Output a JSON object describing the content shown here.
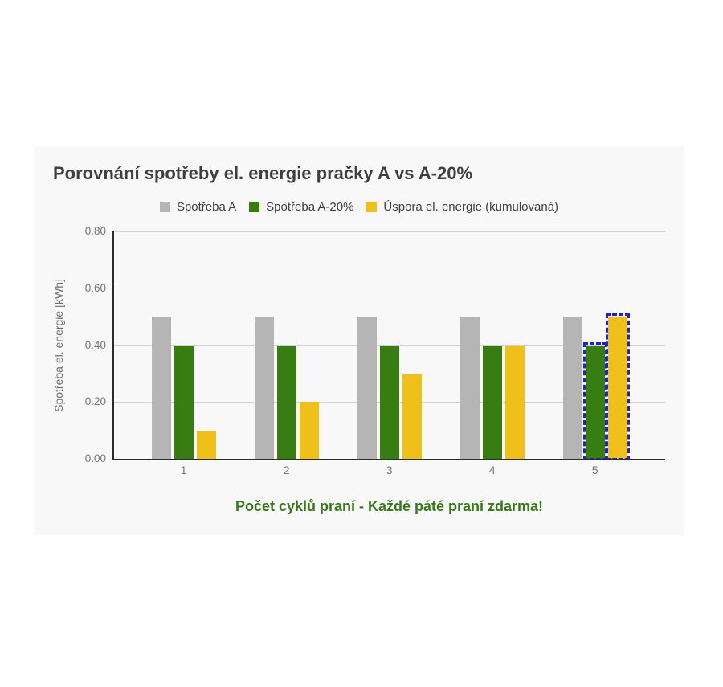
{
  "chart_data": {
    "type": "bar",
    "title": "Porovnání spotřeby el. energie pračky A vs A-20%",
    "xlabel": "Počet cyklů praní - Každé páté praní zdarma!",
    "ylabel": "Spotřeba el. energie [kWh]",
    "categories": [
      "1",
      "2",
      "3",
      "4",
      "5"
    ],
    "series": [
      {
        "name": "Spotřeba A",
        "color": "#b5b5b5",
        "values": [
          0.5,
          0.5,
          0.5,
          0.5,
          0.5
        ]
      },
      {
        "name": "Spotřeba A-20%",
        "color": "#377d12",
        "values": [
          0.4,
          0.4,
          0.4,
          0.4,
          0.4
        ]
      },
      {
        "name": "Úspora el. energie (kumulovaná)",
        "color": "#f0c01a",
        "values": [
          0.1,
          0.2,
          0.3,
          0.4,
          0.5
        ]
      }
    ],
    "yticks": [
      "0.00",
      "0.20",
      "0.40",
      "0.60",
      "0.80"
    ],
    "ylim": [
      0,
      0.8
    ],
    "grid": true,
    "legend_position": "top",
    "highlight": {
      "color": "#2222cc",
      "style": "blue-dashed-outline",
      "bars": [
        {
          "series_index": 1,
          "category_index": 4
        },
        {
          "series_index": 2,
          "category_index": 4
        }
      ]
    }
  },
  "colors": {
    "page_background": "#ffffff",
    "card_background": "#f8f8f8",
    "title_text": "#3f3f3f",
    "legend_text": "#3d3d3d",
    "axis_tick_text": "#757575",
    "axis_title_text": "#6e6e6e",
    "x_axis_title_text": "#38761d",
    "grid_line": "#d2d2d2",
    "axis_line": "#2b2b2b",
    "highlight_outline": "#2222cc"
  }
}
